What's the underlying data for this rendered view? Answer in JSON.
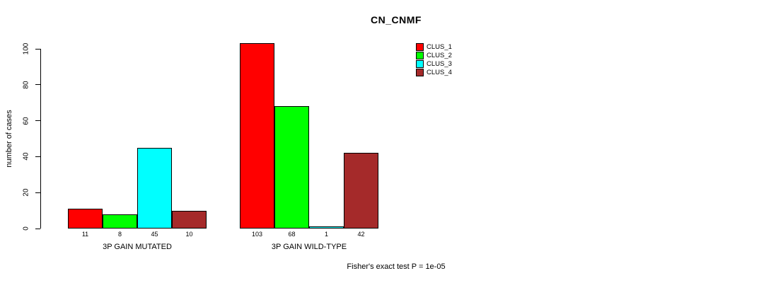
{
  "chart_data": {
    "type": "bar",
    "title": "CN_CNMF",
    "ylabel": "number of cases",
    "ylim": [
      0,
      100
    ],
    "yticks": [
      0,
      20,
      40,
      60,
      80,
      100
    ],
    "grid": false,
    "legend_position": "top-right",
    "series": [
      {
        "name": "CLUS_1",
        "color": "#ff0000"
      },
      {
        "name": "CLUS_2",
        "color": "#00ff00"
      },
      {
        "name": "CLUS_3",
        "color": "#00ffff"
      },
      {
        "name": "CLUS_4",
        "color": "#a52a2a"
      }
    ],
    "groups": [
      {
        "label": "3P GAIN MUTATED",
        "values": [
          11,
          8,
          45,
          10
        ]
      },
      {
        "label": "3P GAIN WILD-TYPE",
        "values": [
          103,
          68,
          1,
          42
        ]
      }
    ],
    "footer": "Fisher's exact test P = 1e-05"
  }
}
